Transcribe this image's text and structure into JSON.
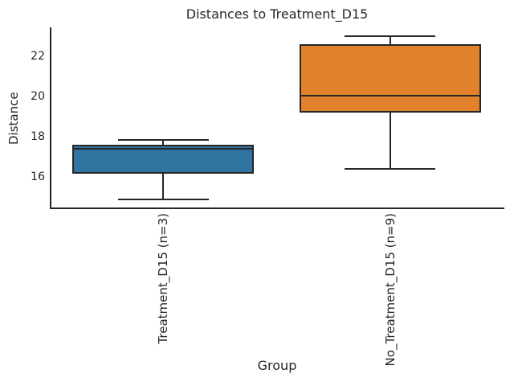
{
  "figure": {
    "background": "#ffffff",
    "text_color": "#262626",
    "line_color": "#262626"
  },
  "chart_data": {
    "type": "boxplot",
    "title": "Distances to Treatment_D15",
    "xlabel": "Group",
    "ylabel": "Distance",
    "categories": [
      "Treatment_D15 (n=3)",
      "No_Treatment_D15 (n=9)"
    ],
    "yticks": [
      16,
      18,
      20,
      22
    ],
    "ylim": [
      14.44,
      23.4
    ],
    "grid": false,
    "legend": "none",
    "series": [
      {
        "name": "Treatment_D15 (n=3)",
        "color": "#3274a1",
        "whisker_low": 14.9,
        "q1": 16.15,
        "median": 17.4,
        "q3": 17.6,
        "whisker_high": 17.85
      },
      {
        "name": "No_Treatment_D15 (n=9)",
        "color": "#e1812c",
        "whisker_low": 16.4,
        "q1": 19.2,
        "median": 20.05,
        "q3": 22.6,
        "whisker_high": 23.0
      }
    ]
  }
}
